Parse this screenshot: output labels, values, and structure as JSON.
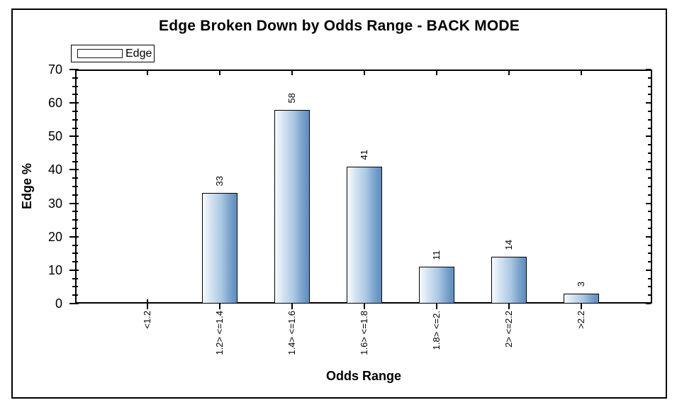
{
  "chart_data": {
    "type": "bar",
    "title": "Edge Broken Down by Odds Range - BACK MODE",
    "series_name": "Edge",
    "categories": [
      "<1.2",
      "1.2> <=1.4",
      "1.4> <=1.6",
      "1.6> <=1.8",
      "1.8> <=2.",
      "2> <=2.2",
      ">2.2"
    ],
    "values": [
      0,
      33,
      58,
      41,
      11,
      14,
      3
    ],
    "value_labels": [
      "",
      "33",
      "58",
      "41",
      "11",
      "14",
      "3"
    ],
    "xlabel": "Odds Range",
    "ylabel": "Edge %",
    "ylim": [
      0,
      70
    ],
    "y_major_ticks": [
      0,
      10,
      20,
      30,
      40,
      50,
      60,
      70
    ],
    "y_minor_step": 2.5,
    "grid": false,
    "legend_position": "top-left",
    "bar_gradient": [
      "#f7fbfe",
      "#6190c0"
    ],
    "bar_border_color": "#000000",
    "frame_color": "#000000",
    "background_color": "#ffffff",
    "text_color": "#000000"
  }
}
